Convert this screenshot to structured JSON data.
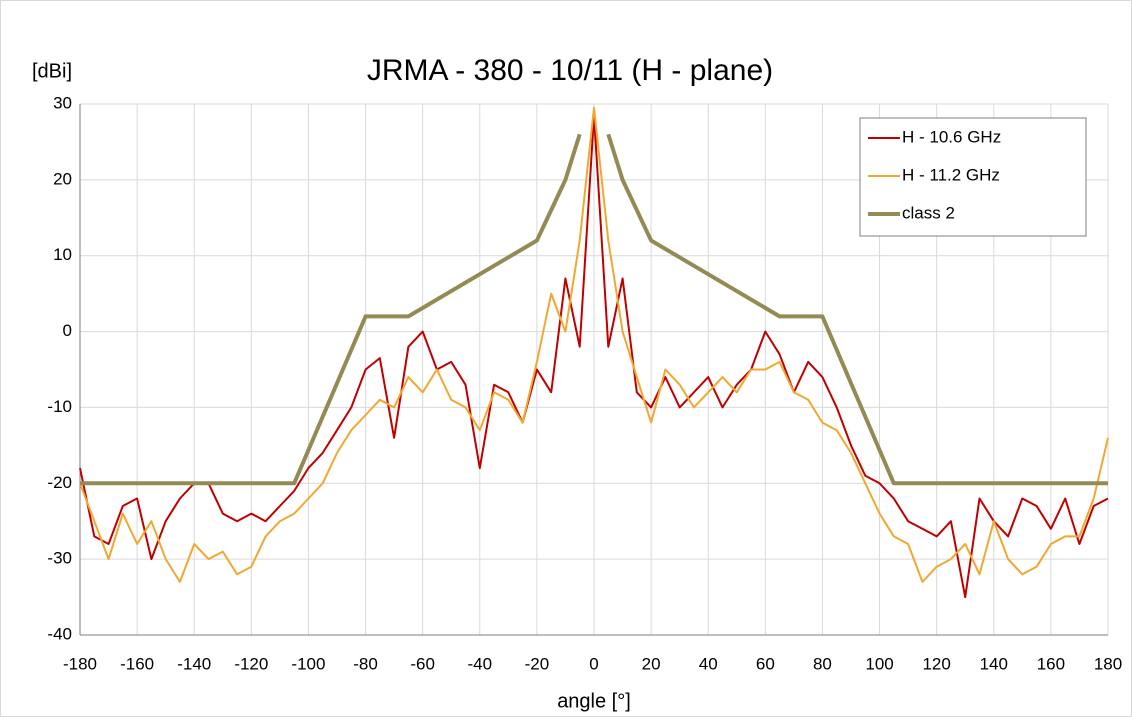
{
  "chart_data": {
    "type": "line",
    "title": "JRMA - 380 - 10/11 (H - plane)",
    "y_label": "[dBi]",
    "x_label": "angle [°]",
    "x": [
      -180,
      -175,
      -170,
      -165,
      -160,
      -155,
      -150,
      -145,
      -140,
      -135,
      -130,
      -125,
      -120,
      -115,
      -110,
      -105,
      -100,
      -95,
      -90,
      -85,
      -80,
      -75,
      -70,
      -65,
      -60,
      -55,
      -50,
      -45,
      -40,
      -35,
      -30,
      -25,
      -20,
      -15,
      -10,
      -5,
      0,
      5,
      10,
      15,
      20,
      25,
      30,
      35,
      40,
      45,
      50,
      55,
      60,
      65,
      70,
      75,
      80,
      85,
      90,
      95,
      100,
      105,
      110,
      115,
      120,
      125,
      130,
      135,
      140,
      145,
      150,
      155,
      160,
      165,
      170,
      175,
      180
    ],
    "series": [
      {
        "name": "H - 10.6 GHz",
        "color": "#c00000",
        "width": 2,
        "values": [
          -18,
          -27,
          -28,
          -23,
          -22,
          -30,
          -25,
          -22,
          -20,
          -20,
          -24,
          -25,
          -24,
          -25,
          -23,
          -21,
          -18,
          -16,
          -13,
          -10,
          -5,
          -3.5,
          -14,
          -2,
          0,
          -5,
          -4,
          -7,
          -18,
          -7,
          -8,
          -12,
          -5,
          -8,
          7,
          -2,
          28.5,
          -2,
          7,
          -8,
          -10,
          -6,
          -10,
          -8,
          -6,
          -10,
          -7,
          -5,
          0,
          -3,
          -8,
          -4,
          -6,
          -10,
          -15,
          -19,
          -20,
          -22,
          -25,
          -26,
          -27,
          -25,
          -35,
          -22,
          -25,
          -27,
          -22,
          -23,
          -26,
          -22,
          -28,
          -23,
          -22
        ]
      },
      {
        "name": "H - 11.2 GHz",
        "color": "#f0a830",
        "width": 2,
        "values": [
          -20,
          -25,
          -30,
          -24,
          -28,
          -25,
          -30,
          -33,
          -28,
          -30,
          -29,
          -32,
          -31,
          -27,
          -25,
          -24,
          -22,
          -20,
          -16,
          -13,
          -11,
          -9,
          -10,
          -6,
          -8,
          -5,
          -9,
          -10,
          -13,
          -8,
          -9,
          -12,
          -4,
          5,
          0,
          12,
          29.5,
          12,
          0,
          -6,
          -12,
          -5,
          -7,
          -10,
          -8,
          -6,
          -8,
          -5,
          -5,
          -4,
          -8,
          -9,
          -12,
          -13,
          -16,
          -20,
          -24,
          -27,
          -28,
          -33,
          -31,
          -30,
          -28,
          -32,
          -25,
          -30,
          -32,
          -31,
          -28,
          -27,
          -27,
          -22,
          -14
        ]
      },
      {
        "name": "class 2",
        "color": "#948a54",
        "width": 4,
        "x": [
          -180,
          -105,
          -80,
          -65,
          -20,
          -10,
          -5,
          0,
          5,
          10,
          20,
          65,
          80,
          105,
          180
        ],
        "values": [
          -20,
          -20,
          2,
          2,
          12,
          20,
          26,
          null,
          26,
          20,
          12,
          2,
          2,
          -20,
          -20
        ]
      }
    ],
    "xlim": [
      -180,
      180
    ],
    "xticks": [
      -180,
      -160,
      -140,
      -120,
      -100,
      -80,
      -60,
      -40,
      -20,
      0,
      20,
      40,
      60,
      80,
      100,
      120,
      140,
      160,
      180
    ],
    "ylim": [
      -40,
      30
    ],
    "yticks": [
      -40,
      -30,
      -20,
      -10,
      0,
      10,
      20,
      30
    ],
    "grid": true,
    "legend": "upper right"
  }
}
